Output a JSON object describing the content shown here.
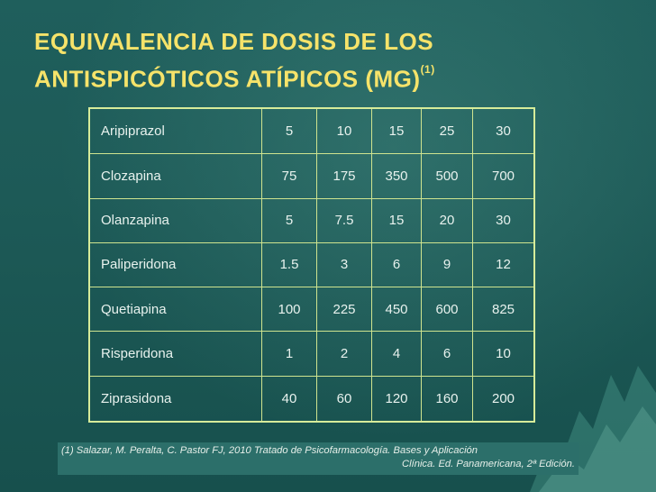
{
  "slide": {
    "title_line1": "EQUIVALENCIA DE DOSIS DE LOS",
    "title_line2": "ANTISPICÓTICOS ATÍPICOS (MG)",
    "title_sup": "(1)"
  },
  "table": {
    "rows": [
      {
        "name": "Aripiprazol",
        "values": [
          "5",
          "10",
          "15",
          "25",
          "30"
        ]
      },
      {
        "name": "Clozapina",
        "values": [
          "75",
          "175",
          "350",
          "500",
          "700"
        ]
      },
      {
        "name": "Olanzapina",
        "values": [
          "5",
          "7.5",
          "15",
          "20",
          "30"
        ]
      },
      {
        "name": "Paliperidona",
        "values": [
          "1.5",
          "3",
          "6",
          "9",
          "12"
        ]
      },
      {
        "name": "Quetiapina",
        "values": [
          "100",
          "225",
          "450",
          "600",
          "825"
        ]
      },
      {
        "name": "Risperidona",
        "values": [
          "1",
          "2",
          "4",
          "6",
          "10"
        ]
      },
      {
        "name": "Ziprasidona",
        "values": [
          "40",
          "60",
          "120",
          "160",
          "200"
        ]
      }
    ]
  },
  "footnote": {
    "line1": "(1) Salazar, M. Peralta, C. Pastor FJ, 2010 Tratado de Psicofarmacología. Bases y Aplicación",
    "line2": "Clínica. Ed. Panamericana, 2ª Edición."
  }
}
